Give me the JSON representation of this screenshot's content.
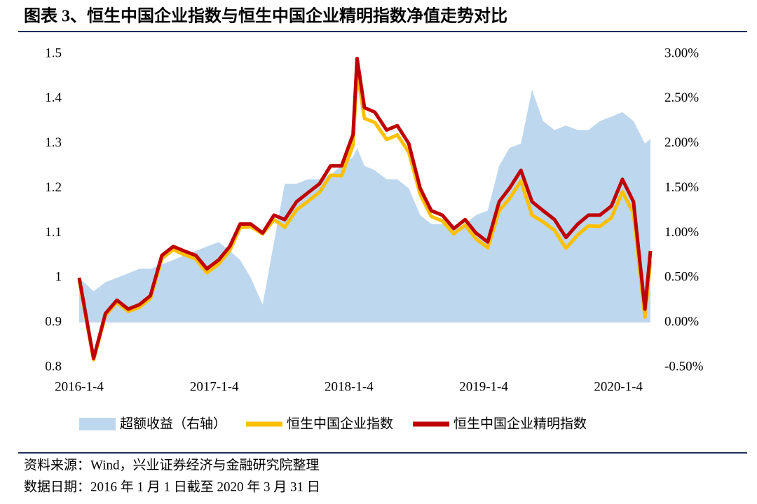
{
  "chart_data": {
    "type": "line",
    "title": "图表 3、恒生中国企业指数与恒生中国企业精明指数净值走势对比",
    "x": [
      "2016-1-4",
      "2016-2-12",
      "2016-3-15",
      "2016-4-15",
      "2016-5-16",
      "2016-6-15",
      "2016-7-15",
      "2016-8-15",
      "2016-9-15",
      "2016-10-14",
      "2016-11-15",
      "2016-12-15",
      "2017-1-16",
      "2017-2-15",
      "2017-3-15",
      "2017-4-13",
      "2017-5-15",
      "2017-6-15",
      "2017-7-14",
      "2017-8-15",
      "2017-9-15",
      "2017-10-16",
      "2017-11-15",
      "2017-12-15",
      "2018-1-15",
      "2018-1-26",
      "2018-2-15",
      "2018-3-15",
      "2018-4-16",
      "2018-5-15",
      "2018-6-15",
      "2018-7-16",
      "2018-8-15",
      "2018-9-14",
      "2018-10-15",
      "2018-11-15",
      "2018-12-14",
      "2019-1-15",
      "2019-2-15",
      "2019-3-15",
      "2019-4-15",
      "2019-5-15",
      "2019-6-14",
      "2019-7-15",
      "2019-8-15",
      "2019-9-16",
      "2019-10-15",
      "2019-11-15",
      "2019-12-16",
      "2020-1-15",
      "2020-2-14",
      "2020-3-16",
      "2020-3-31"
    ],
    "xlim": [
      "2016-1-4",
      "2020-3-31"
    ],
    "xticks": [
      "2016-1-4",
      "2017-1-4",
      "2018-1-4",
      "2019-1-4",
      "2020-1-4"
    ],
    "ylim": [
      0.8,
      1.5
    ],
    "yticks": [
      0.8,
      0.9,
      1,
      1.1,
      1.2,
      1.3,
      1.4,
      1.5
    ],
    "y2lim": [
      -0.5,
      3
    ],
    "y2ticks": [
      {
        "value": -0.5,
        "label": "-0.50%"
      },
      {
        "value": 0,
        "label": "0.00%"
      },
      {
        "value": 0.5,
        "label": "0.50%"
      },
      {
        "value": 1,
        "label": "1.00%"
      },
      {
        "value": 1.5,
        "label": "1.50%"
      },
      {
        "value": 2,
        "label": "2.00%"
      },
      {
        "value": 2.5,
        "label": "2.50%"
      },
      {
        "value": 3,
        "label": "3.00%"
      }
    ],
    "series": [
      {
        "name": "超额收益（右轴）",
        "kind": "area",
        "axis": "y2",
        "color": "#bdd7ee",
        "values": [
          0.5,
          0.35,
          0.45,
          0.5,
          0.55,
          0.6,
          0.6,
          0.65,
          0.7,
          0.75,
          0.8,
          0.85,
          0.9,
          0.8,
          0.7,
          0.5,
          0.2,
          0.9,
          1.55,
          1.55,
          1.6,
          1.6,
          1.65,
          1.75,
          1.85,
          1.95,
          1.75,
          1.7,
          1.6,
          1.6,
          1.5,
          1.2,
          1.1,
          1.1,
          1.05,
          1.1,
          1.2,
          1.25,
          1.75,
          1.95,
          2.0,
          2.6,
          2.25,
          2.15,
          2.2,
          2.15,
          2.15,
          2.25,
          2.3,
          2.35,
          2.25,
          2.0,
          2.05
        ]
      },
      {
        "name": "恒生中国企业指数",
        "kind": "line",
        "color": "#ffc000",
        "values": [
          0.995,
          0.817,
          0.916,
          0.945,
          0.925,
          0.934,
          0.954,
          1.043,
          1.063,
          1.052,
          1.042,
          1.011,
          1.031,
          1.061,
          1.112,
          1.114,
          1.098,
          1.13,
          1.113,
          1.152,
          1.171,
          1.191,
          1.229,
          1.228,
          1.296,
          1.461,
          1.356,
          1.347,
          1.309,
          1.319,
          1.281,
          1.186,
          1.137,
          1.127,
          1.098,
          1.118,
          1.087,
          1.067,
          1.15,
          1.177,
          1.216,
          1.14,
          1.125,
          1.106,
          1.066,
          1.096,
          1.116,
          1.115,
          1.134,
          1.192,
          1.144,
          0.912,
          1.039
        ]
      },
      {
        "name": "恒生中国企业精明指数",
        "kind": "line",
        "color": "#c00000",
        "values": [
          1.0,
          0.82,
          0.92,
          0.95,
          0.93,
          0.94,
          0.96,
          1.05,
          1.07,
          1.06,
          1.05,
          1.02,
          1.04,
          1.07,
          1.12,
          1.12,
          1.1,
          1.14,
          1.13,
          1.17,
          1.19,
          1.21,
          1.25,
          1.25,
          1.32,
          1.49,
          1.38,
          1.37,
          1.33,
          1.34,
          1.3,
          1.2,
          1.15,
          1.14,
          1.11,
          1.13,
          1.1,
          1.08,
          1.17,
          1.2,
          1.24,
          1.17,
          1.15,
          1.13,
          1.09,
          1.12,
          1.14,
          1.14,
          1.16,
          1.22,
          1.17,
          0.93,
          1.06
        ]
      }
    ]
  },
  "footnotes": [
    "资料来源：Wind，兴业证券经济与金融研究院整理",
    "数据日期：2016 年 1 月 1 日截至 2020 年 3 月 31 日"
  ]
}
